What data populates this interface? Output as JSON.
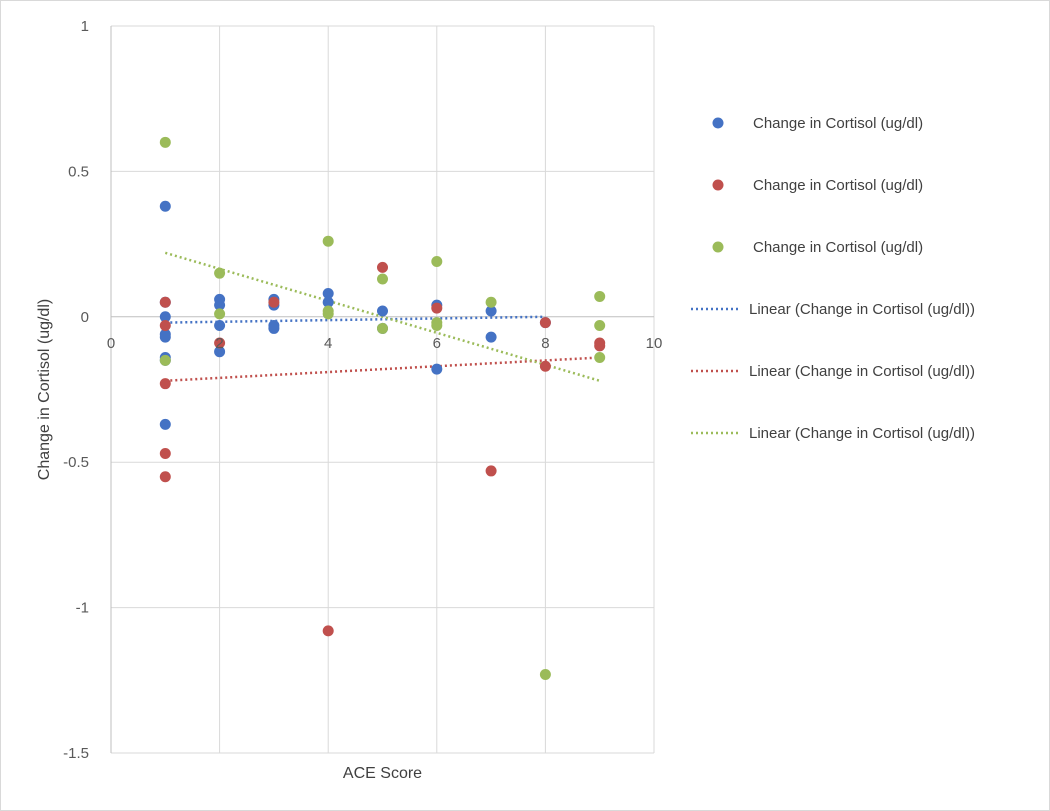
{
  "chart_data": {
    "type": "scatter",
    "title": "",
    "xlabel": "ACE Score",
    "ylabel": "Change in Cortisol (ug/dl)",
    "xlim": [
      0,
      10
    ],
    "ylim": [
      -1.5,
      1
    ],
    "x_ticks": [
      0,
      2,
      4,
      6,
      8,
      10
    ],
    "y_ticks": [
      1,
      0.5,
      0,
      -0.5,
      -1,
      -1.5
    ],
    "x_tick_labels": [
      "0",
      "2",
      "4",
      "6",
      "8",
      "10"
    ],
    "y_tick_labels": [
      "1",
      "0.5",
      "0",
      "-0.5",
      "-1",
      "-1.5"
    ],
    "grid": true,
    "legend_position": "right",
    "series": [
      {
        "name": "Change in Cortisol (ug/dl)",
        "color": "#4472c4",
        "points": [
          [
            1,
            0.38
          ],
          [
            1,
            0.05
          ],
          [
            1,
            0.0
          ],
          [
            1,
            -0.06
          ],
          [
            1,
            -0.07
          ],
          [
            1,
            -0.14
          ],
          [
            1,
            -0.15
          ],
          [
            1,
            -0.37
          ],
          [
            2,
            0.06
          ],
          [
            2,
            0.04
          ],
          [
            2,
            -0.03
          ],
          [
            2,
            -0.12
          ],
          [
            3,
            0.06
          ],
          [
            3,
            0.04
          ],
          [
            3,
            -0.03
          ],
          [
            3,
            -0.04
          ],
          [
            4,
            0.08
          ],
          [
            4,
            0.05
          ],
          [
            5,
            0.02
          ],
          [
            5,
            -0.04
          ],
          [
            6,
            0.04
          ],
          [
            6,
            -0.18
          ],
          [
            7,
            0.02
          ],
          [
            7,
            -0.07
          ],
          [
            8,
            -0.02
          ]
        ]
      },
      {
        "name": "Change in Cortisol (ug/dl)",
        "color": "#c0504d",
        "points": [
          [
            1,
            0.05
          ],
          [
            1,
            -0.03
          ],
          [
            1,
            -0.23
          ],
          [
            1,
            -0.47
          ],
          [
            1,
            -0.55
          ],
          [
            2,
            -0.09
          ],
          [
            3,
            0.05
          ],
          [
            4,
            -1.08
          ],
          [
            5,
            0.17
          ],
          [
            6,
            0.03
          ],
          [
            7,
            -0.53
          ],
          [
            8,
            -0.02
          ],
          [
            8,
            -0.17
          ],
          [
            9,
            -0.09
          ],
          [
            9,
            -0.1
          ]
        ]
      },
      {
        "name": "Change in Cortisol (ug/dl)",
        "color": "#9bbb59",
        "points": [
          [
            1,
            0.6
          ],
          [
            1,
            -0.15
          ],
          [
            2,
            0.15
          ],
          [
            2,
            0.01
          ],
          [
            4,
            0.26
          ],
          [
            4,
            0.02
          ],
          [
            4,
            0.01
          ],
          [
            5,
            0.13
          ],
          [
            5,
            -0.04
          ],
          [
            6,
            0.19
          ],
          [
            6,
            -0.02
          ],
          [
            6,
            -0.03
          ],
          [
            7,
            0.05
          ],
          [
            8,
            -1.23
          ],
          [
            9,
            0.07
          ],
          [
            9,
            -0.03
          ],
          [
            9,
            -0.14
          ]
        ]
      }
    ],
    "trendlines": [
      {
        "name": "Linear (Change in Cortisol (ug/dl))",
        "color": "#4472c4",
        "x": [
          1,
          8
        ],
        "y": [
          -0.02,
          0.0
        ]
      },
      {
        "name": "Linear (Change in Cortisol (ug/dl))",
        "color": "#c0504d",
        "x": [
          1,
          9
        ],
        "y": [
          -0.22,
          -0.14
        ]
      },
      {
        "name": "Linear (Change in Cortisol (ug/dl))",
        "color": "#9bbb59",
        "x": [
          1,
          9
        ],
        "y": [
          0.22,
          -0.22
        ]
      }
    ]
  }
}
